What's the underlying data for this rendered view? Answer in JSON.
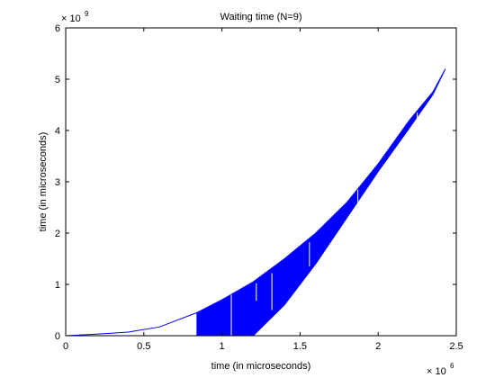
{
  "chart_data": {
    "type": "area",
    "title": "Waiting time (N=9)",
    "xlabel": "time (in microseconds)",
    "ylabel": "time (in microseconds)",
    "x_exponent_label": "× 10",
    "x_exponent": "6",
    "y_exponent_label": "× 10",
    "y_exponent": "9",
    "xlim": [
      0,
      2.5
    ],
    "ylim": [
      0,
      6
    ],
    "xticks": [
      "0",
      "0.5",
      "1",
      "1.5",
      "2",
      "2.5"
    ],
    "yticks": [
      "0",
      "1",
      "2",
      "3",
      "4",
      "5",
      "6"
    ],
    "grid": false,
    "series_color": "#0000ff",
    "upper_envelope": {
      "x": [
        0,
        0.2,
        0.4,
        0.6,
        0.84,
        1.0,
        1.2,
        1.4,
        1.6,
        1.8,
        2.0,
        2.2,
        2.35,
        2.43
      ],
      "y": [
        0,
        0.03,
        0.07,
        0.17,
        0.45,
        0.7,
        1.05,
        1.5,
        2.0,
        2.6,
        3.35,
        4.2,
        4.75,
        5.2
      ]
    },
    "lower_envelope": {
      "x": [
        0,
        0.2,
        0.4,
        0.6,
        0.84,
        0.84,
        1.0,
        1.2,
        1.4,
        1.6,
        1.8,
        2.0,
        2.2,
        2.35,
        2.43
      ],
      "y": [
        0,
        0.03,
        0.07,
        0.17,
        0.45,
        0.0,
        0.0,
        0.0,
        0.6,
        1.4,
        2.3,
        3.2,
        4.05,
        4.7,
        5.2
      ]
    },
    "gaps": [
      {
        "x": 1.06,
        "y1": 0.0,
        "y2": 0.8
      },
      {
        "x": 1.22,
        "y1": 0.68,
        "y2": 1.02
      },
      {
        "x": 1.32,
        "y1": 0.5,
        "y2": 1.22
      },
      {
        "x": 1.56,
        "y1": 1.35,
        "y2": 1.82
      },
      {
        "x": 1.87,
        "y1": 2.5,
        "y2": 2.85
      },
      {
        "x": 2.25,
        "y1": 4.15,
        "y2": 4.35
      }
    ]
  }
}
